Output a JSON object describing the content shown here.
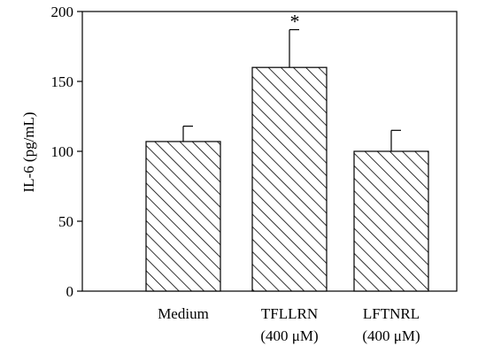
{
  "chart_data": {
    "type": "bar",
    "ylabel": "IL-6 (pg/mL)",
    "ylim": [
      0,
      200
    ],
    "yticks": [
      0,
      50,
      100,
      150,
      200
    ],
    "categories": [
      {
        "line1": "Medium",
        "line2": ""
      },
      {
        "line1": "TFLLRN",
        "line2": "(400 μM)"
      },
      {
        "line1": "LFTNRL",
        "line2": "(400 μM)"
      }
    ],
    "values": [
      107,
      160,
      100
    ],
    "errors": [
      11,
      27,
      15
    ],
    "annotations": [
      "",
      "*",
      ""
    ],
    "bar_fill": "diagonal-hatch",
    "color": "#000000"
  }
}
